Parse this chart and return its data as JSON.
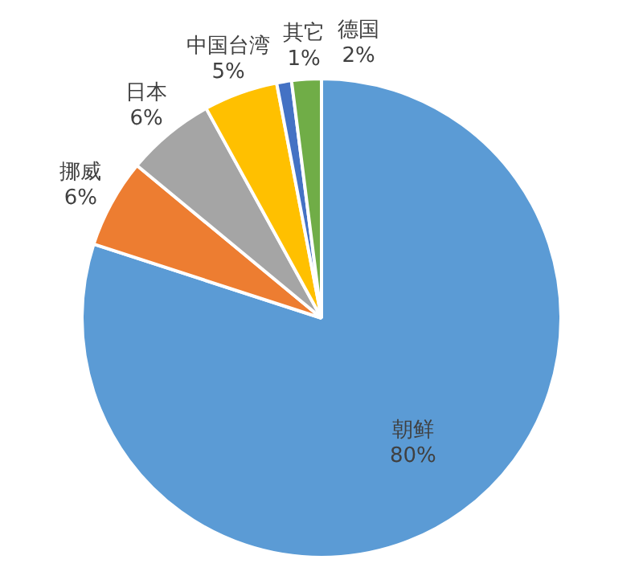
{
  "chart_data": {
    "type": "pie",
    "categories": [
      "朝鲜",
      "挪威",
      "日本",
      "中国台湾",
      "其它",
      "德国"
    ],
    "values": [
      80,
      6,
      6,
      5,
      1,
      2
    ],
    "colors": [
      "#5b9bd5",
      "#ed7d31",
      "#a5a5a5",
      "#ffc000",
      "#4472c4",
      "#70ad47"
    ],
    "value_labels": [
      "80%",
      "6%",
      "6%",
      "5%",
      "1%",
      "2%"
    ],
    "legend": false
  }
}
